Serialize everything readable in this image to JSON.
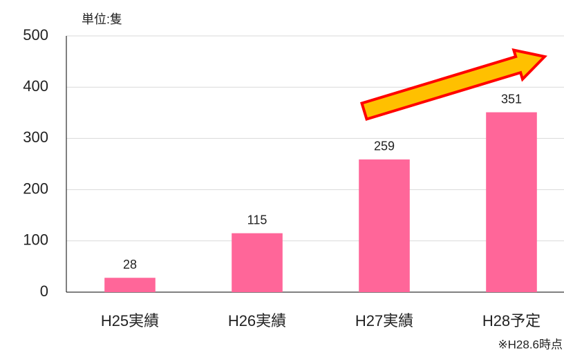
{
  "chart_data": {
    "type": "bar",
    "unit_label": "単位:隻",
    "note": "※H28.6時点",
    "categories": [
      "H25実績",
      "H26実績",
      "H27実績",
      "H28予定"
    ],
    "values": [
      28,
      115,
      259,
      351
    ],
    "color": "#ff6699",
    "ylim": [
      0,
      500
    ],
    "yticks": [
      0,
      100,
      200,
      300,
      400,
      500
    ],
    "grid": true
  }
}
